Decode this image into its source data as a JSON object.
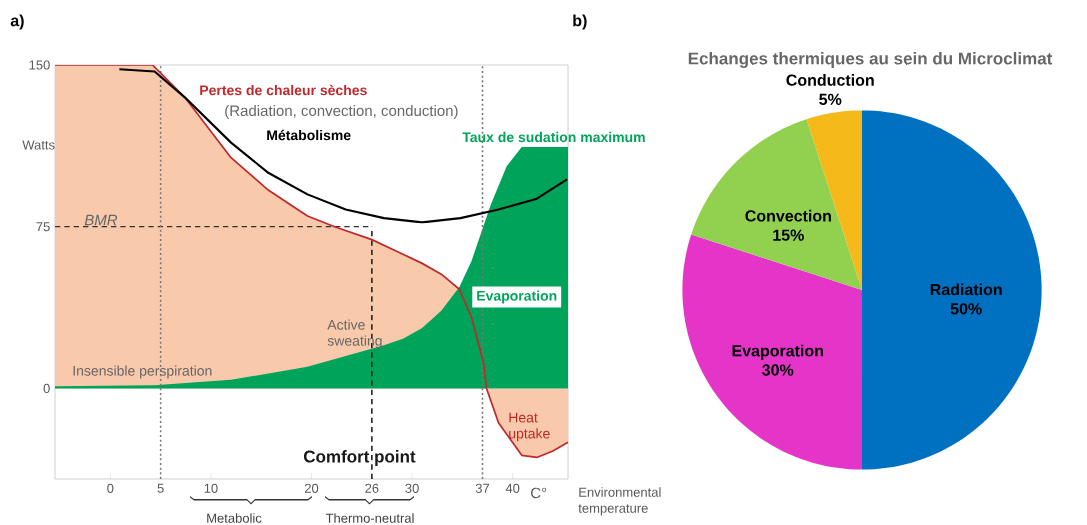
{
  "chart_data": [
    {
      "type": "line",
      "xlabel": "Environmental temperature",
      "ylabel": "Watts",
      "xlim": [
        -5.5,
        45.5
      ],
      "ylim": [
        -42,
        150
      ],
      "xticks": [
        0,
        5,
        10,
        20,
        26,
        30,
        37,
        40
      ],
      "yticks": [
        0,
        75,
        150
      ],
      "series": [
        {
          "type": "area",
          "line_style": "solid",
          "name": "Pertes de chaleur sèches",
          "color": "#c0282d",
          "x": [
            -5.5,
            4.2,
            7.4,
            12,
            15.7,
            19.6,
            22.3,
            26,
            28.3,
            31,
            32.9,
            34.7,
            35.9,
            37.1,
            37.4,
            38.6,
            40.9,
            42.4,
            44,
            45.5
          ],
          "values": [
            150,
            150,
            135,
            107,
            92,
            80,
            75,
            69,
            64,
            58,
            53,
            46,
            33,
            12,
            0,
            -16,
            -31,
            -32,
            -29,
            -25
          ]
        },
        {
          "type": "area",
          "name": "Evaporation",
          "color": "#00a35a",
          "x": [
            -5.5,
            4.4,
            12,
            19.6,
            23.4,
            27.2,
            29.1,
            31,
            32.9,
            34.7,
            35.9,
            37.8,
            39.4,
            40.9,
            45.5
          ],
          "values": [
            1,
            1.5,
            4,
            10,
            15,
            20,
            23,
            28,
            36,
            47,
            59,
            85,
            103,
            112,
            112
          ]
        },
        {
          "type": "line",
          "name": "Métabolisme",
          "color": "#000000",
          "x": [
            0.9,
            4.4,
            7.4,
            12,
            15.7,
            19.6,
            23.4,
            27.2,
            31,
            34.8,
            38.6,
            42.4,
            45.4
          ],
          "values": [
            148,
            147,
            135,
            114,
            100,
            90,
            83,
            79,
            77,
            79,
            83,
            88,
            97
          ]
        }
      ],
      "ref_lines": [
        {
          "axis": "y",
          "value": 75,
          "label": "BMR",
          "line_style": "dashed",
          "color": "#333333"
        },
        {
          "axis": "x",
          "value": 26,
          "label": "Comfort point",
          "line_style": "dashed",
          "color": "#222222"
        },
        {
          "axis": "x",
          "value": 5,
          "line_style": "dotted",
          "color": "#777777"
        },
        {
          "axis": "x",
          "value": 37,
          "line_style": "dotted",
          "color": "#777777"
        }
      ],
      "annotations": [
        "a)",
        "(Radiation, convection, conduction)",
        "Taux de sudation maximum",
        "Insensible perspiration",
        "Active sweating",
        "Heat uptake",
        "C°",
        "Metabolic",
        "Thermo-neutral"
      ]
    },
    {
      "type": "pie",
      "title": "Echanges thermiques au sein du Microclimat",
      "categories": [
        "Radiation",
        "Evaporation",
        "Convection",
        "Conduction"
      ],
      "values": [
        50,
        30,
        15,
        5
      ],
      "colors": [
        "#0070c0",
        "#e535c8",
        "#92d050",
        "#f5b919"
      ],
      "value_labels": [
        "50%",
        "30%",
        "15%",
        "5%"
      ],
      "annotations": [
        "b)"
      ]
    }
  ]
}
